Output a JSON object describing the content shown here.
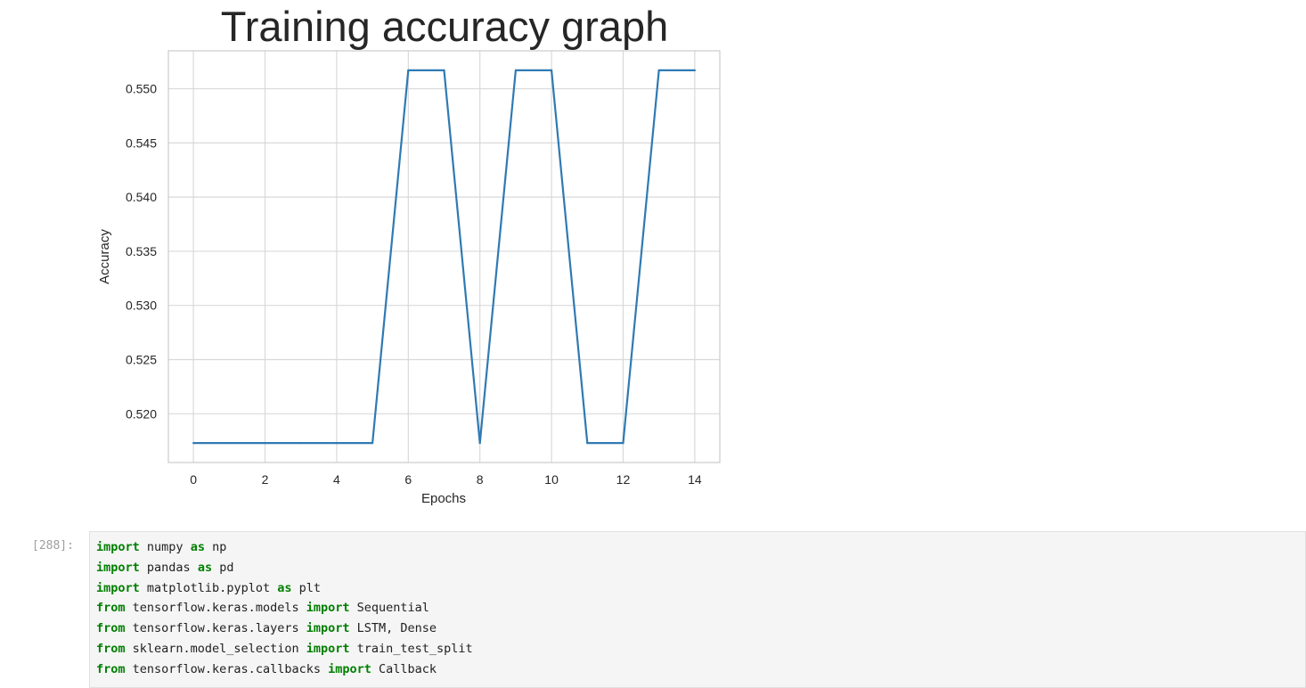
{
  "output": {
    "chart_data": {
      "type": "line",
      "title": "Training accuracy graph",
      "xlabel": "Epochs",
      "ylabel": "Accuracy",
      "x": [
        0,
        1,
        2,
        3,
        4,
        5,
        6,
        7,
        8,
        9,
        10,
        11,
        12,
        13,
        14
      ],
      "series": [
        {
          "values": [
            0.5173,
            0.5173,
            0.5173,
            0.5173,
            0.5173,
            0.5173,
            0.5517,
            0.5517,
            0.5173,
            0.5517,
            0.5517,
            0.5173,
            0.5173,
            0.5517,
            0.5517
          ],
          "color": "#2f7ab3"
        }
      ],
      "xticks": [
        "0",
        "2",
        "4",
        "6",
        "8",
        "10",
        "12",
        "14"
      ],
      "yticks": [
        "0.520",
        "0.525",
        "0.530",
        "0.535",
        "0.540",
        "0.545",
        "0.550"
      ],
      "xlim": [
        -0.7,
        14.7
      ],
      "ylim": [
        0.5155,
        0.5535
      ],
      "grid": true
    }
  },
  "cell": {
    "prompt": "[288]:",
    "lines": [
      [
        {
          "t": "import",
          "k": true
        },
        {
          "t": " numpy "
        },
        {
          "t": "as",
          "k": true
        },
        {
          "t": " np"
        }
      ],
      [
        {
          "t": "import",
          "k": true
        },
        {
          "t": " pandas "
        },
        {
          "t": "as",
          "k": true
        },
        {
          "t": " pd"
        }
      ],
      [
        {
          "t": "import",
          "k": true
        },
        {
          "t": " matplotlib.pyplot "
        },
        {
          "t": "as",
          "k": true
        },
        {
          "t": " plt"
        }
      ],
      [
        {
          "t": "from",
          "k": true
        },
        {
          "t": " tensorflow.keras.models "
        },
        {
          "t": "import",
          "k": true
        },
        {
          "t": " Sequential"
        }
      ],
      [
        {
          "t": "from",
          "k": true
        },
        {
          "t": " tensorflow.keras.layers "
        },
        {
          "t": "import",
          "k": true
        },
        {
          "t": " LSTM, Dense"
        }
      ],
      [
        {
          "t": "from",
          "k": true
        },
        {
          "t": " sklearn.model_selection "
        },
        {
          "t": "import",
          "k": true
        },
        {
          "t": " train_test_split"
        }
      ],
      [
        {
          "t": "from",
          "k": true
        },
        {
          "t": " tensorflow.keras.callbacks "
        },
        {
          "t": "import",
          "k": true
        },
        {
          "t": " Callback"
        }
      ]
    ]
  }
}
